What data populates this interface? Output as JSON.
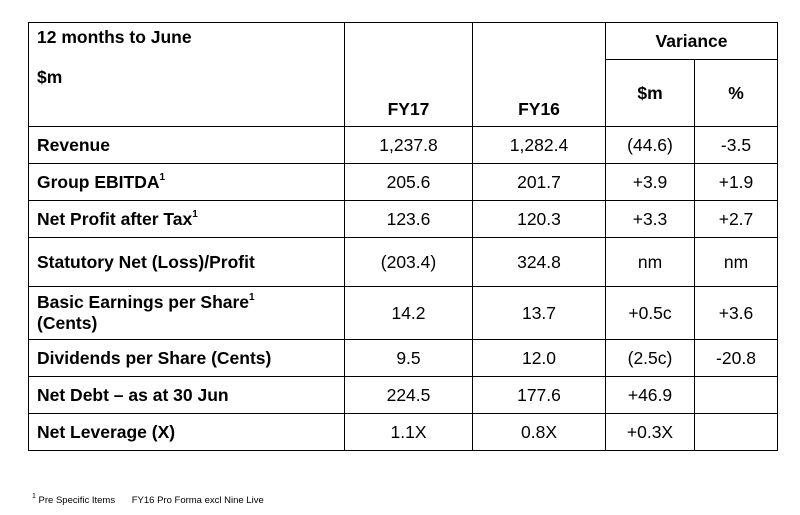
{
  "header": {
    "period": "12 months to June",
    "unit": "$m",
    "fy17": "FY17",
    "fy16": "FY16",
    "variance": "Variance",
    "var_dollar": "$m",
    "var_pct": "%"
  },
  "rows": [
    {
      "label": "Revenue",
      "sup": "",
      "label2": "",
      "fy17": "1,237.8",
      "fy16": "1,282.4",
      "var": "(44.6)",
      "pct": "-3.5"
    },
    {
      "label": "Group EBITDA",
      "sup": "1",
      "label2": "",
      "fy17": "205.6",
      "fy16": "201.7",
      "var": "+3.9",
      "pct": "+1.9"
    },
    {
      "label": "Net Profit after Tax",
      "sup": "1",
      "label2": "",
      "fy17": "123.6",
      "fy16": "120.3",
      "var": "+3.3",
      "pct": "+2.7"
    },
    {
      "label": "Statutory Net (Loss)/Profit",
      "sup": "",
      "label2": "",
      "fy17": "(203.4)",
      "fy16": "324.8",
      "var": "nm",
      "pct": "nm"
    },
    {
      "label": "Basic Earnings per Share",
      "sup": "1",
      "label2": "(Cents)",
      "fy17": "14.2",
      "fy16": "13.7",
      "var": "+0.5c",
      "pct": "+3.6"
    },
    {
      "label": "Dividends per Share (Cents)",
      "sup": "",
      "label2": "",
      "fy17": "9.5",
      "fy16": "12.0",
      "var": "(2.5c)",
      "pct": "-20.8"
    },
    {
      "label": "Net Debt – as at 30 Jun",
      "sup": "",
      "label2": "",
      "fy17": "224.5",
      "fy16": "177.6",
      "var": "+46.9",
      "pct": ""
    },
    {
      "label": "Net Leverage (X)",
      "sup": "",
      "label2": "",
      "fy17": "1.1X",
      "fy16": "0.8X",
      "var": "+0.3X",
      "pct": ""
    }
  ],
  "footnote": {
    "marker": "1",
    "text1": "Pre Specific Items",
    "text2": "FY16 Pro Forma excl Nine Live"
  }
}
